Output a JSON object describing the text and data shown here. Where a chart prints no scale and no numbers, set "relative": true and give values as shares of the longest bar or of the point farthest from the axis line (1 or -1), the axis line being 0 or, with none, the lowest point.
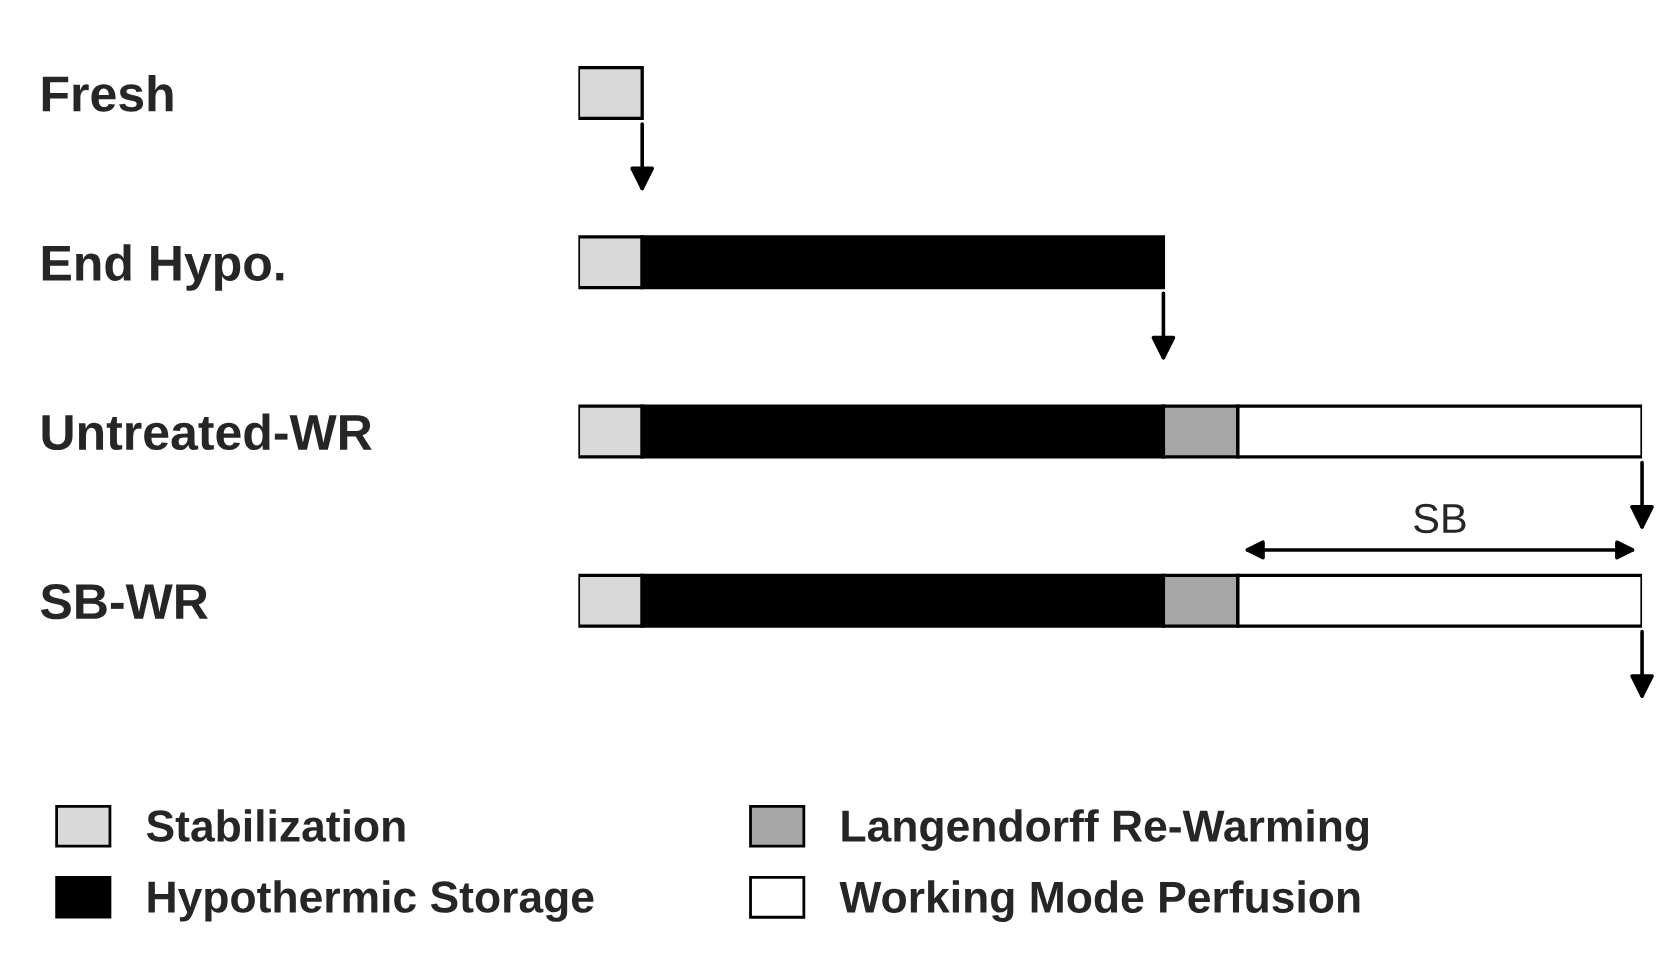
{
  "chart_data": {
    "type": "bar",
    "orientation": "horizontal",
    "stacked": true,
    "relative": true,
    "categories": [
      "Fresh",
      "End Hypo.",
      "Untreated-WR",
      "SB-WR"
    ],
    "series": [
      {
        "name": "Stabilization",
        "color": "#d9d9d9",
        "values": [
          0.06,
          0.06,
          0.06,
          0.06
        ]
      },
      {
        "name": "Hypothermic Storage",
        "color": "#000000",
        "values": [
          null,
          0.49,
          0.49,
          0.49
        ]
      },
      {
        "name": "Langendorff Re-Warming",
        "color": "#a6a6a6",
        "values": [
          null,
          null,
          0.07,
          0.07
        ]
      },
      {
        "name": "Working Mode Perfusion",
        "color": "#ffffff",
        "values": [
          null,
          null,
          0.38,
          0.38
        ]
      }
    ],
    "annotations": [
      "SB"
    ],
    "legend": "bottom"
  }
}
